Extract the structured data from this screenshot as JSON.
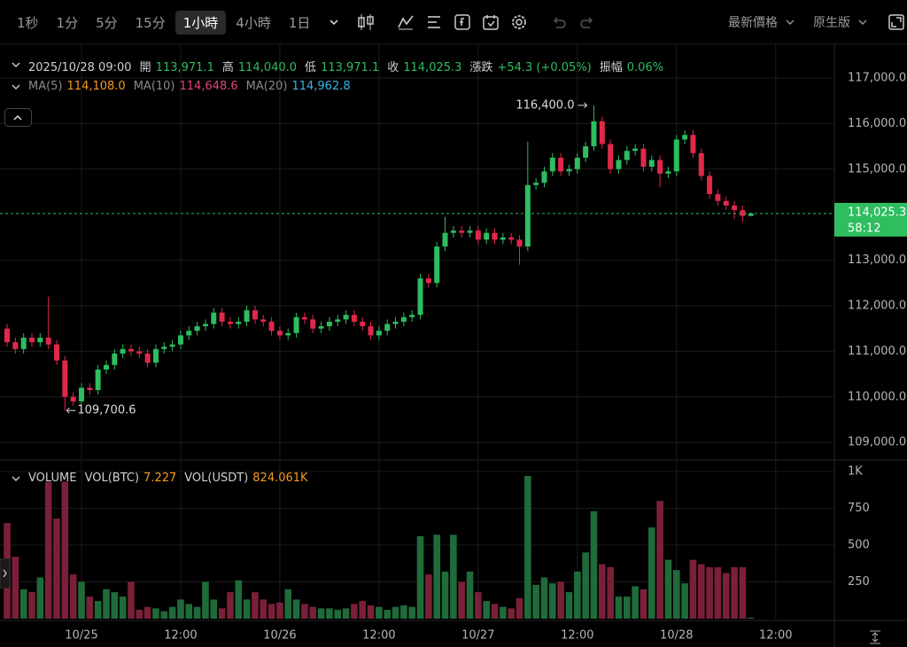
{
  "toolbar": {
    "intervals": [
      "1秒",
      "1分",
      "5分",
      "15分",
      "1小時",
      "4小時",
      "1日"
    ],
    "active_index": 4,
    "price_type": "最新價格",
    "mode": "原生版"
  },
  "ohlc_legend": {
    "time": "2025/10/28 09:00",
    "items": [
      {
        "label": "開",
        "value": "113,971.1"
      },
      {
        "label": "高",
        "value": "114,040.0"
      },
      {
        "label": "低",
        "value": "113,971.1"
      },
      {
        "label": "收",
        "value": "114,025.3"
      },
      {
        "label": "漲跌",
        "value": "+54.3 (+0.05%)"
      },
      {
        "label": "振幅",
        "value": "0.06%"
      }
    ]
  },
  "ma_legend": [
    {
      "label": "MA(5)",
      "value": "114,108.0",
      "color": "#f59a23"
    },
    {
      "label": "MA(10)",
      "value": "114,648.6",
      "color": "#e0457b"
    },
    {
      "label": "MA(20)",
      "value": "114,962.8",
      "color": "#3ab5e6"
    }
  ],
  "volume_legend": {
    "title": "VOLUME",
    "items": [
      {
        "label": "VOL(BTC)",
        "value": "7.227"
      },
      {
        "label": "VOL(USDT)",
        "value": "824.061K"
      }
    ]
  },
  "chart_data": [
    {
      "type": "candlestick",
      "up_color": "#2ebd5f",
      "down_color": "#e0294a",
      "grid": true,
      "xlim": [
        -0.86,
        100.1
      ],
      "ylim": [
        108634,
        117700
      ],
      "yticks": [
        {
          "value": 109000,
          "label": "109,000.0"
        },
        {
          "value": 110000,
          "label": "110,000.0"
        },
        {
          "value": 111000,
          "label": "111,000.0"
        },
        {
          "value": 112000,
          "label": "112,000.0"
        },
        {
          "value": 113000,
          "label": "113,000.0"
        },
        {
          "value": 115000,
          "label": "115,000.0"
        },
        {
          "value": 116000,
          "label": "116,000.0"
        },
        {
          "value": 117000,
          "label": "117,000.0"
        }
      ],
      "open": [
        111500,
        111200,
        111050,
        111300,
        111200,
        111300,
        111150,
        110800,
        110000,
        109900,
        110200,
        110150,
        110600,
        110700,
        110950,
        111050,
        111000,
        110950,
        110750,
        111050,
        111100,
        111150,
        111350,
        111450,
        111550,
        111600,
        111850,
        111650,
        111600,
        111650,
        111900,
        111700,
        111650,
        111450,
        111350,
        111400,
        111750,
        111700,
        111500,
        111550,
        111650,
        111700,
        111800,
        111650,
        111550,
        111350,
        111450,
        111600,
        111650,
        111750,
        111800,
        112600,
        112500,
        113300,
        113600,
        113650,
        113600,
        113650,
        113450,
        113600,
        113450,
        113500,
        113450,
        113300,
        114650,
        114700,
        114950,
        115250,
        114950,
        115000,
        115250,
        115500,
        116050,
        115550,
        115000,
        115200,
        115400,
        115450,
        115050,
        115200,
        114900,
        114950,
        115650,
        115750,
        115350,
        114850,
        114450,
        114300,
        114200,
        114100,
        113971.1
      ],
      "high": [
        111600,
        111300,
        111400,
        111400,
        111400,
        112200,
        111250,
        110900,
        110100,
        110300,
        110300,
        110700,
        110800,
        111050,
        111150,
        111150,
        111100,
        111050,
        111150,
        111200,
        111250,
        111450,
        111550,
        111650,
        111700,
        111950,
        111950,
        111750,
        111750,
        112000,
        112000,
        111800,
        111750,
        111550,
        111500,
        111850,
        111850,
        111800,
        111650,
        111750,
        111800,
        111900,
        111900,
        111750,
        111650,
        111550,
        111700,
        111750,
        111850,
        111900,
        112700,
        112700,
        113400,
        113950,
        113750,
        113750,
        113750,
        113750,
        113700,
        113700,
        113600,
        113600,
        113550,
        115600,
        114800,
        115050,
        115350,
        115350,
        115100,
        115350,
        115600,
        116400,
        116150,
        115650,
        115300,
        115500,
        115550,
        115550,
        115300,
        115300,
        115050,
        115750,
        115850,
        115850,
        115450,
        114950,
        114550,
        114400,
        114300,
        114200,
        114040
      ],
      "low": [
        111100,
        110950,
        110950,
        111100,
        111100,
        111050,
        110700,
        109700.6,
        109800,
        109800,
        110050,
        110050,
        110500,
        110600,
        110850,
        110900,
        110850,
        110650,
        110650,
        110950,
        111000,
        111050,
        111250,
        111350,
        111450,
        111500,
        111550,
        111500,
        111500,
        111550,
        111600,
        111550,
        111350,
        111250,
        111250,
        111300,
        111600,
        111400,
        111400,
        111450,
        111550,
        111600,
        111550,
        111450,
        111250,
        111250,
        111350,
        111500,
        111550,
        111650,
        111700,
        112400,
        112400,
        113200,
        113500,
        113500,
        113500,
        113350,
        113350,
        113350,
        113350,
        113350,
        112900,
        113200,
        114550,
        114600,
        114850,
        114850,
        114850,
        114900,
        115150,
        115400,
        115450,
        114900,
        114900,
        115100,
        115300,
        114950,
        114950,
        114600,
        114800,
        114850,
        115550,
        115250,
        114750,
        114350,
        114200,
        114100,
        113900,
        113850,
        113971.1
      ],
      "close": [
        111200,
        111050,
        111300,
        111200,
        111300,
        111150,
        110800,
        110000,
        109900,
        110200,
        110150,
        110600,
        110700,
        110950,
        111050,
        111000,
        110950,
        110750,
        111050,
        111100,
        111150,
        111350,
        111450,
        111550,
        111600,
        111850,
        111650,
        111600,
        111650,
        111900,
        111700,
        111650,
        111450,
        111350,
        111400,
        111750,
        111700,
        111500,
        111550,
        111650,
        111700,
        111800,
        111650,
        111550,
        111350,
        111450,
        111600,
        111650,
        111750,
        111800,
        112600,
        112500,
        113300,
        113600,
        113650,
        113600,
        113650,
        113450,
        113600,
        113450,
        113500,
        113450,
        113300,
        114650,
        114700,
        114950,
        115250,
        114950,
        115000,
        115250,
        115500,
        116050,
        115550,
        115000,
        115200,
        115400,
        115450,
        115050,
        115200,
        114900,
        114950,
        115650,
        115750,
        115350,
        114850,
        114450,
        114300,
        114200,
        114100,
        113971.1,
        114025.3
      ],
      "annotations": [
        {
          "value": 116400,
          "label": "116,400.0",
          "of": "high"
        },
        {
          "value": 109700.6,
          "label": "109,700.6",
          "of": "low"
        }
      ],
      "last_price": {
        "value": 114025.3,
        "label": "114,025.3",
        "countdown": "58:12",
        "color": "#2ebd5f"
      }
    },
    {
      "type": "bar",
      "up_color": "#1f6b3a",
      "down_color": "#7a2038",
      "grid": true,
      "xlim": [
        -0.86,
        100.1
      ],
      "ylim": [
        0,
        1072
      ],
      "yticks": [
        250,
        500,
        750,
        {
          "value": 1000,
          "label": "1K"
        }
      ],
      "xticks": [
        {
          "value": 9,
          "label": "10/25"
        },
        {
          "value": 21,
          "label": "12:00"
        },
        {
          "value": 33,
          "label": "10/26"
        },
        {
          "value": 45,
          "label": "12:00"
        },
        {
          "value": 57,
          "label": "10/27"
        },
        {
          "value": 69,
          "label": "12:00"
        },
        {
          "value": 81,
          "label": "10/28"
        },
        {
          "value": 93,
          "label": "12:00"
        }
      ],
      "values": [
        650,
        420,
        200,
        180,
        280,
        930,
        680,
        930,
        300,
        250,
        150,
        120,
        200,
        180,
        150,
        250,
        60,
        80,
        70,
        50,
        80,
        130,
        100,
        80,
        250,
        130,
        70,
        180,
        260,
        130,
        180,
        130,
        100,
        110,
        200,
        130,
        100,
        80,
        70,
        70,
        60,
        70,
        100,
        120,
        90,
        80,
        60,
        80,
        90,
        80,
        560,
        300,
        570,
        320,
        570,
        250,
        320,
        180,
        120,
        100,
        80,
        70,
        140,
        970,
        230,
        280,
        240,
        250,
        180,
        320,
        450,
        730,
        370,
        350,
        150,
        150,
        220,
        200,
        620,
        800,
        400,
        330,
        240,
        400,
        370,
        350,
        350,
        310,
        350,
        350,
        7.227
      ]
    }
  ]
}
